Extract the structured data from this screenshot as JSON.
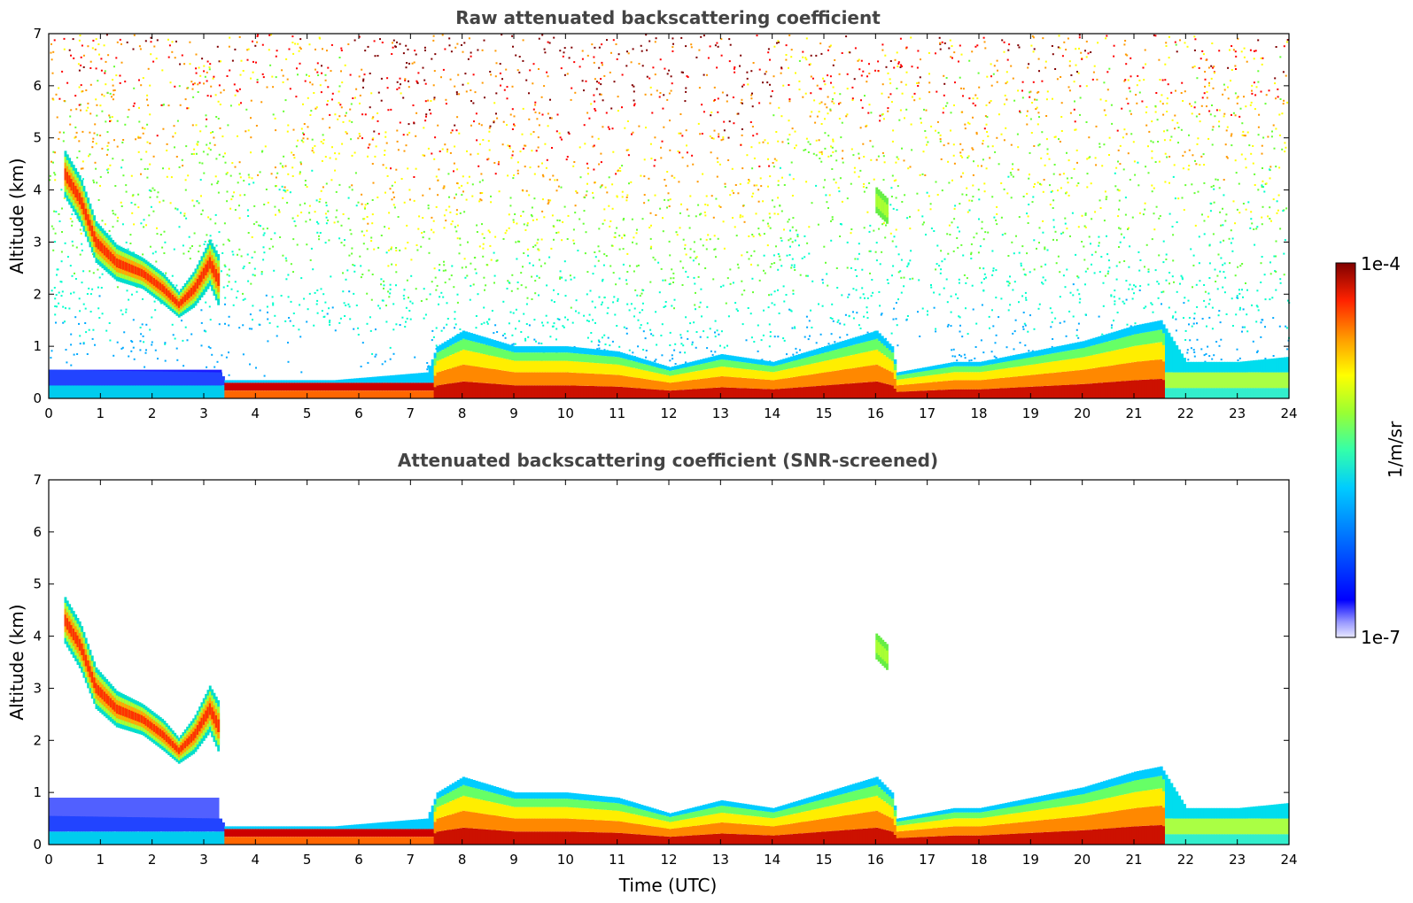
{
  "chart_data": [
    {
      "type": "heatmap",
      "title": "Raw attenuated backscattering coefficient",
      "xlabel": "",
      "ylabel": "Altitude (km)",
      "xlim": [
        0,
        24
      ],
      "ylim": [
        0,
        7
      ],
      "x_ticks": [
        "0",
        "1",
        "2",
        "3",
        "4",
        "5",
        "6",
        "7",
        "8",
        "9",
        "10",
        "11",
        "12",
        "13",
        "14",
        "15",
        "16",
        "17",
        "18",
        "19",
        "20",
        "21",
        "22",
        "23",
        "24"
      ],
      "y_ticks": [
        "0",
        "1",
        "2",
        "3",
        "4",
        "5",
        "6",
        "7"
      ],
      "noise_level": "high",
      "noise_floor_profile": [
        {
          "x": 0,
          "y": 0.6
        },
        {
          "x": 3.3,
          "y": 0.6
        },
        {
          "x": 3.4,
          "y": 0.3
        },
        {
          "x": 16.3,
          "y": 0.3
        },
        {
          "x": 16.4,
          "y": 0.6
        },
        {
          "x": 24,
          "y": 0.6
        }
      ],
      "boundary_layer": [
        {
          "x": 0,
          "top": 0.55,
          "value": "low"
        },
        {
          "x": 3.3,
          "top": 0.5,
          "value": "low"
        },
        {
          "x": 3.4,
          "top": 0.35,
          "value": "high"
        },
        {
          "x": 5.5,
          "top": 0.35,
          "value": "high"
        },
        {
          "x": 7.3,
          "top": 0.5,
          "value": "high"
        },
        {
          "x": 7.5,
          "top": 1.0,
          "value": "high"
        },
        {
          "x": 8,
          "top": 1.3,
          "value": "high"
        },
        {
          "x": 9,
          "top": 1.0,
          "value": "high"
        },
        {
          "x": 10,
          "top": 1.0,
          "value": "high"
        },
        {
          "x": 11,
          "top": 0.9,
          "value": "high"
        },
        {
          "x": 12,
          "top": 0.6,
          "value": "high"
        },
        {
          "x": 13,
          "top": 0.85,
          "value": "high"
        },
        {
          "x": 14,
          "top": 0.7,
          "value": "high"
        },
        {
          "x": 15,
          "top": 1.0,
          "value": "high"
        },
        {
          "x": 16,
          "top": 1.3,
          "value": "high"
        },
        {
          "x": 16.3,
          "top": 1.0,
          "value": "high"
        },
        {
          "x": 16.4,
          "top": 0.5,
          "value": "high"
        },
        {
          "x": 17.5,
          "top": 0.7,
          "value": "high"
        },
        {
          "x": 18,
          "top": 0.7,
          "value": "high"
        },
        {
          "x": 19,
          "top": 0.9,
          "value": "high"
        },
        {
          "x": 20,
          "top": 1.1,
          "value": "high"
        },
        {
          "x": 21,
          "top": 1.4,
          "value": "high"
        },
        {
          "x": 21.5,
          "top": 1.5,
          "value": "high"
        },
        {
          "x": 22,
          "top": 0.7,
          "value": "mid"
        },
        {
          "x": 23,
          "top": 0.7,
          "value": "mid"
        },
        {
          "x": 24,
          "top": 0.8,
          "value": "mid"
        }
      ],
      "cloud_layers": [
        {
          "name": "",
          "points": [
            {
              "x": 0.3,
              "y": 4.3,
              "th": 0.9
            },
            {
              "x": 0.6,
              "y": 3.8,
              "th": 0.9
            },
            {
              "x": 0.9,
              "y": 3.0,
              "th": 0.8
            },
            {
              "x": 1.3,
              "y": 2.6,
              "th": 0.7
            },
            {
              "x": 1.8,
              "y": 2.4,
              "th": 0.6
            },
            {
              "x": 2.2,
              "y": 2.1,
              "th": 0.6
            },
            {
              "x": 2.5,
              "y": 1.8,
              "th": 0.5
            },
            {
              "x": 2.8,
              "y": 2.1,
              "th": 0.7
            },
            {
              "x": 3.1,
              "y": 2.6,
              "th": 0.9
            },
            {
              "x": 3.3,
              "y": 2.2,
              "th": 1.0
            }
          ]
        },
        {
          "name": "",
          "points": [
            {
              "x": 16.0,
              "y": 3.8,
              "th": 0.5
            },
            {
              "x": 16.2,
              "y": 3.6,
              "th": 0.5
            }
          ]
        }
      ]
    },
    {
      "type": "heatmap",
      "title": "Attenuated backscattering coefficient (SNR-screened)",
      "xlabel": "Time (UTC)",
      "ylabel": "Altitude (km)",
      "xlim": [
        0,
        24
      ],
      "ylim": [
        0,
        7
      ],
      "x_ticks": [
        "0",
        "1",
        "2",
        "3",
        "4",
        "5",
        "6",
        "7",
        "8",
        "9",
        "10",
        "11",
        "12",
        "13",
        "14",
        "15",
        "16",
        "17",
        "18",
        "19",
        "20",
        "21",
        "22",
        "23",
        "24"
      ],
      "y_ticks": [
        "0",
        "1",
        "2",
        "3",
        "4",
        "5",
        "6",
        "7"
      ],
      "noise_level": "none",
      "boundary_layer": [
        {
          "x": 0,
          "top": 0.55,
          "value": "low"
        },
        {
          "x": 3.3,
          "top": 0.5,
          "value": "low"
        },
        {
          "x": 3.4,
          "top": 0.35,
          "value": "high"
        },
        {
          "x": 5.5,
          "top": 0.35,
          "value": "high"
        },
        {
          "x": 7.3,
          "top": 0.5,
          "value": "high"
        },
        {
          "x": 7.5,
          "top": 1.0,
          "value": "high"
        },
        {
          "x": 8,
          "top": 1.3,
          "value": "high"
        },
        {
          "x": 9,
          "top": 1.0,
          "value": "high"
        },
        {
          "x": 10,
          "top": 1.0,
          "value": "high"
        },
        {
          "x": 11,
          "top": 0.9,
          "value": "high"
        },
        {
          "x": 12,
          "top": 0.6,
          "value": "high"
        },
        {
          "x": 13,
          "top": 0.85,
          "value": "high"
        },
        {
          "x": 14,
          "top": 0.7,
          "value": "high"
        },
        {
          "x": 15,
          "top": 1.0,
          "value": "high"
        },
        {
          "x": 16,
          "top": 1.3,
          "value": "high"
        },
        {
          "x": 16.3,
          "top": 1.0,
          "value": "high"
        },
        {
          "x": 16.4,
          "top": 0.5,
          "value": "high"
        },
        {
          "x": 17.5,
          "top": 0.7,
          "value": "high"
        },
        {
          "x": 18,
          "top": 0.7,
          "value": "high"
        },
        {
          "x": 19,
          "top": 0.9,
          "value": "high"
        },
        {
          "x": 20,
          "top": 1.1,
          "value": "high"
        },
        {
          "x": 21,
          "top": 1.4,
          "value": "high"
        },
        {
          "x": 21.5,
          "top": 1.5,
          "value": "high"
        },
        {
          "x": 22,
          "top": 0.7,
          "value": "mid"
        },
        {
          "x": 23,
          "top": 0.7,
          "value": "mid"
        },
        {
          "x": 24,
          "top": 0.8,
          "value": "mid"
        }
      ],
      "cloud_layers": [
        {
          "name": "",
          "points": [
            {
              "x": 0.3,
              "y": 4.3,
              "th": 0.9
            },
            {
              "x": 0.6,
              "y": 3.8,
              "th": 0.9
            },
            {
              "x": 0.9,
              "y": 3.0,
              "th": 0.8
            },
            {
              "x": 1.3,
              "y": 2.6,
              "th": 0.7
            },
            {
              "x": 1.8,
              "y": 2.4,
              "th": 0.6
            },
            {
              "x": 2.2,
              "y": 2.1,
              "th": 0.6
            },
            {
              "x": 2.5,
              "y": 1.8,
              "th": 0.5
            },
            {
              "x": 2.8,
              "y": 2.1,
              "th": 0.7
            },
            {
              "x": 3.1,
              "y": 2.6,
              "th": 0.9
            },
            {
              "x": 3.3,
              "y": 2.2,
              "th": 1.0
            }
          ]
        },
        {
          "name": "",
          "points": [
            {
              "x": 16.0,
              "y": 3.8,
              "th": 0.5
            },
            {
              "x": 16.2,
              "y": 3.6,
              "th": 0.5
            }
          ]
        }
      ]
    }
  ],
  "colorbar": {
    "max_label": "1e-4",
    "min_label": "1e-7",
    "unit_label": "1/m/sr",
    "scale": "log",
    "colormap": [
      "#000080",
      "#0000ff",
      "#00aaff",
      "#00ffcc",
      "#66ff33",
      "#ffff00",
      "#ff9900",
      "#ff0000",
      "#800000"
    ]
  }
}
